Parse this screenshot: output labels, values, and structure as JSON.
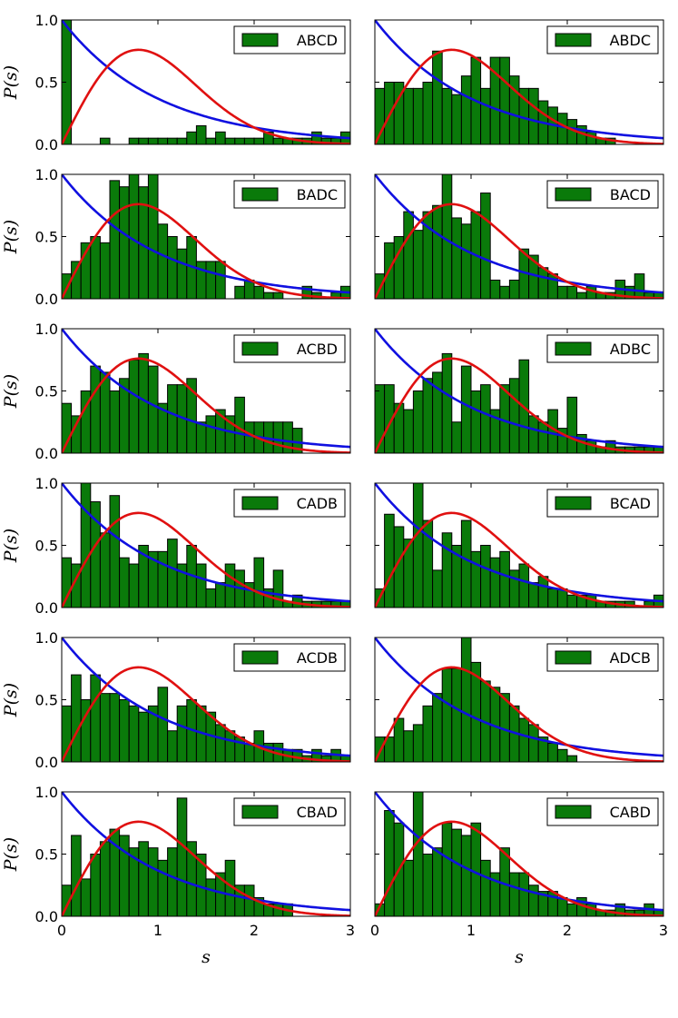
{
  "figure": {
    "ylabel": "P(s)",
    "xlabel": "s",
    "x_ticks": [
      "0",
      "1",
      "2",
      "3"
    ],
    "y_ticks": [
      "0.0",
      "0.5",
      "1.0"
    ]
  },
  "colors": {
    "bars": "#0a7a0a",
    "bar_edge": "#000000",
    "poisson_curve": "#1010e0",
    "wigner_curve": "#e01010"
  },
  "chart_data": [
    {
      "type": "bar",
      "legend": "ABCD",
      "legend_position": "top-right",
      "xlim": [
        0,
        3
      ],
      "ylim": [
        0,
        1
      ],
      "bin_width": 0.1,
      "bin_starts": [
        0.0,
        0.1,
        0.2,
        0.3,
        0.4,
        0.5,
        0.6,
        0.7,
        0.8,
        0.9,
        1.0,
        1.1,
        1.2,
        1.3,
        1.4,
        1.5,
        1.6,
        1.7,
        1.8,
        1.9,
        2.0,
        2.1,
        2.2,
        2.3,
        2.4,
        2.5,
        2.6,
        2.7,
        2.8,
        2.9
      ],
      "values": [
        1.0,
        0,
        0,
        0,
        0.05,
        0,
        0,
        0.05,
        0.05,
        0.05,
        0.05,
        0.05,
        0.05,
        0.1,
        0.15,
        0.05,
        0.1,
        0.05,
        0.05,
        0.05,
        0.05,
        0.1,
        0.05,
        0.05,
        0.05,
        0.05,
        0.1,
        0.05,
        0.05,
        0.1
      ],
      "overlay_curves": [
        "exponential",
        "wigner-surmise"
      ]
    },
    {
      "type": "bar",
      "legend": "ABDC",
      "legend_position": "top-right",
      "xlim": [
        0,
        3
      ],
      "ylim": [
        0,
        1
      ],
      "bin_width": 0.1,
      "bin_starts": [
        0.0,
        0.1,
        0.2,
        0.3,
        0.4,
        0.5,
        0.6,
        0.7,
        0.8,
        0.9,
        1.0,
        1.1,
        1.2,
        1.3,
        1.4,
        1.5,
        1.6,
        1.7,
        1.8,
        1.9,
        2.0,
        2.1,
        2.2,
        2.3,
        2.4,
        2.5,
        2.6,
        2.7,
        2.8,
        2.9
      ],
      "values": [
        0.45,
        0.5,
        0.5,
        0.45,
        0.45,
        0.5,
        0.75,
        0.45,
        0.4,
        0.55,
        0.7,
        0.45,
        0.7,
        0.7,
        0.55,
        0.45,
        0.45,
        0.35,
        0.3,
        0.25,
        0.2,
        0.15,
        0.1,
        0.05,
        0.05,
        0,
        0,
        0,
        0,
        0
      ],
      "overlay_curves": [
        "exponential",
        "wigner-surmise"
      ]
    },
    {
      "type": "bar",
      "legend": "BADC",
      "legend_position": "top-right",
      "xlim": [
        0,
        3
      ],
      "ylim": [
        0,
        1
      ],
      "bin_width": 0.1,
      "bin_starts": [
        0.0,
        0.1,
        0.2,
        0.3,
        0.4,
        0.5,
        0.6,
        0.7,
        0.8,
        0.9,
        1.0,
        1.1,
        1.2,
        1.3,
        1.4,
        1.5,
        1.6,
        1.7,
        1.8,
        1.9,
        2.0,
        2.1,
        2.2,
        2.3,
        2.4,
        2.5,
        2.6,
        2.7,
        2.8,
        2.9
      ],
      "values": [
        0.2,
        0.3,
        0.45,
        0.5,
        0.45,
        0.95,
        0.9,
        1.0,
        0.9,
        1.0,
        0.6,
        0.5,
        0.4,
        0.5,
        0.3,
        0.3,
        0.3,
        0.0,
        0.1,
        0.15,
        0.1,
        0.05,
        0.05,
        0.0,
        0.0,
        0.1,
        0.05,
        0.0,
        0.05,
        0.1
      ],
      "overlay_curves": [
        "exponential",
        "wigner-surmise"
      ]
    },
    {
      "type": "bar",
      "legend": "BACD",
      "legend_position": "top-right",
      "xlim": [
        0,
        3
      ],
      "ylim": [
        0,
        1
      ],
      "bin_width": 0.1,
      "bin_starts": [
        0.0,
        0.1,
        0.2,
        0.3,
        0.4,
        0.5,
        0.6,
        0.7,
        0.8,
        0.9,
        1.0,
        1.1,
        1.2,
        1.3,
        1.4,
        1.5,
        1.6,
        1.7,
        1.8,
        1.9,
        2.0,
        2.1,
        2.2,
        2.3,
        2.4,
        2.5,
        2.6,
        2.7,
        2.8,
        2.9
      ],
      "values": [
        0.2,
        0.45,
        0.5,
        0.7,
        0.55,
        0.7,
        0.75,
        1.0,
        0.65,
        0.6,
        0.7,
        0.85,
        0.15,
        0.1,
        0.15,
        0.4,
        0.35,
        0.25,
        0.2,
        0.1,
        0.1,
        0.05,
        0.1,
        0.05,
        0.05,
        0.15,
        0.1,
        0.2,
        0.05,
        0.05
      ],
      "overlay_curves": [
        "exponential",
        "wigner-surmise"
      ]
    },
    {
      "type": "bar",
      "legend": "ACBD",
      "legend_position": "top-right",
      "xlim": [
        0,
        3
      ],
      "ylim": [
        0,
        1
      ],
      "bin_width": 0.1,
      "bin_starts": [
        0.0,
        0.1,
        0.2,
        0.3,
        0.4,
        0.5,
        0.6,
        0.7,
        0.8,
        0.9,
        1.0,
        1.1,
        1.2,
        1.3,
        1.4,
        1.5,
        1.6,
        1.7,
        1.8,
        1.9,
        2.0,
        2.1,
        2.2,
        2.3,
        2.4,
        2.5,
        2.6,
        2.7,
        2.8,
        2.9
      ],
      "values": [
        0.4,
        0.3,
        0.5,
        0.7,
        0.65,
        0.5,
        0.6,
        0.75,
        0.8,
        0.7,
        0.4,
        0.55,
        0.55,
        0.6,
        0.25,
        0.3,
        0.35,
        0.3,
        0.45,
        0.25,
        0.25,
        0.25,
        0.25,
        0.25,
        0.2,
        0.0,
        0.0,
        0.0,
        0.0,
        0.0
      ],
      "overlay_curves": [
        "exponential",
        "wigner-surmise"
      ]
    },
    {
      "type": "bar",
      "legend": "ADBC",
      "legend_position": "top-right",
      "xlim": [
        0,
        3
      ],
      "ylim": [
        0,
        1
      ],
      "bin_width": 0.1,
      "bin_starts": [
        0.0,
        0.1,
        0.2,
        0.3,
        0.4,
        0.5,
        0.6,
        0.7,
        0.8,
        0.9,
        1.0,
        1.1,
        1.2,
        1.3,
        1.4,
        1.5,
        1.6,
        1.7,
        1.8,
        1.9,
        2.0,
        2.1,
        2.2,
        2.3,
        2.4,
        2.5,
        2.6,
        2.7,
        2.8,
        2.9
      ],
      "values": [
        0.55,
        0.55,
        0.4,
        0.35,
        0.5,
        0.6,
        0.65,
        0.8,
        0.25,
        0.7,
        0.5,
        0.55,
        0.35,
        0.55,
        0.6,
        0.75,
        0.3,
        0.25,
        0.35,
        0.2,
        0.45,
        0.15,
        0.1,
        0.05,
        0.1,
        0.05,
        0.05,
        0.05,
        0.05,
        0.05
      ],
      "overlay_curves": [
        "exponential",
        "wigner-surmise"
      ]
    },
    {
      "type": "bar",
      "legend": "CADB",
      "legend_position": "top-right",
      "xlim": [
        0,
        3
      ],
      "ylim": [
        0,
        1
      ],
      "bin_width": 0.1,
      "bin_starts": [
        0.0,
        0.1,
        0.2,
        0.3,
        0.4,
        0.5,
        0.6,
        0.7,
        0.8,
        0.9,
        1.0,
        1.1,
        1.2,
        1.3,
        1.4,
        1.5,
        1.6,
        1.7,
        1.8,
        1.9,
        2.0,
        2.1,
        2.2,
        2.3,
        2.4,
        2.5,
        2.6,
        2.7,
        2.8,
        2.9
      ],
      "values": [
        0.4,
        0.35,
        1.0,
        0.85,
        0.6,
        0.9,
        0.4,
        0.35,
        0.5,
        0.45,
        0.45,
        0.55,
        0.35,
        0.5,
        0.35,
        0.15,
        0.2,
        0.35,
        0.3,
        0.2,
        0.4,
        0.15,
        0.3,
        0.05,
        0.1,
        0.05,
        0.05,
        0.05,
        0.05,
        0.05
      ],
      "overlay_curves": [
        "exponential",
        "wigner-surmise"
      ]
    },
    {
      "type": "bar",
      "legend": "BCAD",
      "legend_position": "top-right",
      "xlim": [
        0,
        3
      ],
      "ylim": [
        0,
        1
      ],
      "bin_width": 0.1,
      "bin_starts": [
        0.0,
        0.1,
        0.2,
        0.3,
        0.4,
        0.5,
        0.6,
        0.7,
        0.8,
        0.9,
        1.0,
        1.1,
        1.2,
        1.3,
        1.4,
        1.5,
        1.6,
        1.7,
        1.8,
        1.9,
        2.0,
        2.1,
        2.2,
        2.3,
        2.4,
        2.5,
        2.6,
        2.7,
        2.8,
        2.9
      ],
      "values": [
        0.15,
        0.75,
        0.65,
        0.55,
        1.0,
        0.7,
        0.3,
        0.6,
        0.5,
        0.7,
        0.45,
        0.5,
        0.4,
        0.45,
        0.3,
        0.35,
        0.2,
        0.25,
        0.15,
        0.15,
        0.1,
        0.1,
        0.1,
        0.05,
        0.05,
        0.05,
        0.05,
        0.0,
        0.05,
        0.1
      ],
      "overlay_curves": [
        "exponential",
        "wigner-surmise"
      ]
    },
    {
      "type": "bar",
      "legend": "ACDB",
      "legend_position": "top-right",
      "xlim": [
        0,
        3
      ],
      "ylim": [
        0,
        1
      ],
      "bin_width": 0.1,
      "bin_starts": [
        0.0,
        0.1,
        0.2,
        0.3,
        0.4,
        0.5,
        0.6,
        0.7,
        0.8,
        0.9,
        1.0,
        1.1,
        1.2,
        1.3,
        1.4,
        1.5,
        1.6,
        1.7,
        1.8,
        1.9,
        2.0,
        2.1,
        2.2,
        2.3,
        2.4,
        2.5,
        2.6,
        2.7,
        2.8,
        2.9
      ],
      "values": [
        0.45,
        0.7,
        0.5,
        0.7,
        0.55,
        0.55,
        0.5,
        0.45,
        0.4,
        0.45,
        0.6,
        0.25,
        0.45,
        0.5,
        0.45,
        0.4,
        0.3,
        0.25,
        0.2,
        0.15,
        0.25,
        0.15,
        0.15,
        0.1,
        0.1,
        0.05,
        0.1,
        0.05,
        0.1,
        0.05
      ],
      "overlay_curves": [
        "exponential",
        "wigner-surmise"
      ]
    },
    {
      "type": "bar",
      "legend": "ADCB",
      "legend_position": "top-right",
      "xlim": [
        0,
        3
      ],
      "ylim": [
        0,
        1
      ],
      "bin_width": 0.1,
      "bin_starts": [
        0.0,
        0.1,
        0.2,
        0.3,
        0.4,
        0.5,
        0.6,
        0.7,
        0.8,
        0.9,
        1.0,
        1.1,
        1.2,
        1.3,
        1.4,
        1.5,
        1.6,
        1.7,
        1.8,
        1.9,
        2.0,
        2.1,
        2.2,
        2.3,
        2.4,
        2.5,
        2.6,
        2.7,
        2.8,
        2.9
      ],
      "values": [
        0.2,
        0.2,
        0.35,
        0.25,
        0.3,
        0.45,
        0.55,
        0.75,
        0.75,
        1.0,
        0.8,
        0.65,
        0.6,
        0.55,
        0.45,
        0.35,
        0.3,
        0.2,
        0.15,
        0.1,
        0.05,
        0,
        0,
        0,
        0,
        0,
        0,
        0,
        0,
        0
      ],
      "overlay_curves": [
        "exponential",
        "wigner-surmise"
      ]
    },
    {
      "type": "bar",
      "legend": "CBAD",
      "legend_position": "top-right",
      "xlim": [
        0,
        3
      ],
      "ylim": [
        0,
        1
      ],
      "bin_width": 0.1,
      "bin_starts": [
        0.0,
        0.1,
        0.2,
        0.3,
        0.4,
        0.5,
        0.6,
        0.7,
        0.8,
        0.9,
        1.0,
        1.1,
        1.2,
        1.3,
        1.4,
        1.5,
        1.6,
        1.7,
        1.8,
        1.9,
        2.0,
        2.1,
        2.2,
        2.3,
        2.4,
        2.5,
        2.6,
        2.7,
        2.8,
        2.9
      ],
      "values": [
        0.25,
        0.65,
        0.3,
        0.5,
        0.6,
        0.7,
        0.65,
        0.55,
        0.6,
        0.55,
        0.45,
        0.55,
        0.95,
        0.6,
        0.5,
        0.3,
        0.35,
        0.45,
        0.25,
        0.25,
        0.15,
        0.1,
        0.1,
        0.1,
        0,
        0,
        0,
        0,
        0,
        0
      ],
      "overlay_curves": [
        "exponential",
        "wigner-surmise"
      ]
    },
    {
      "type": "bar",
      "legend": "CABD",
      "legend_position": "top-right",
      "xlim": [
        0,
        3
      ],
      "ylim": [
        0,
        1
      ],
      "bin_width": 0.1,
      "bin_starts": [
        0.0,
        0.1,
        0.2,
        0.3,
        0.4,
        0.5,
        0.6,
        0.7,
        0.8,
        0.9,
        1.0,
        1.1,
        1.2,
        1.3,
        1.4,
        1.5,
        1.6,
        1.7,
        1.8,
        1.9,
        2.0,
        2.1,
        2.2,
        2.3,
        2.4,
        2.5,
        2.6,
        2.7,
        2.8,
        2.9
      ],
      "values": [
        0.1,
        0.85,
        0.75,
        0.45,
        1.0,
        0.5,
        0.55,
        0.75,
        0.7,
        0.65,
        0.75,
        0.45,
        0.35,
        0.55,
        0.35,
        0.35,
        0.25,
        0.2,
        0.2,
        0.15,
        0.1,
        0.15,
        0.1,
        0.05,
        0.05,
        0.1,
        0.05,
        0.05,
        0.1,
        0.05
      ],
      "overlay_curves": [
        "exponential",
        "wigner-surmise"
      ]
    }
  ]
}
